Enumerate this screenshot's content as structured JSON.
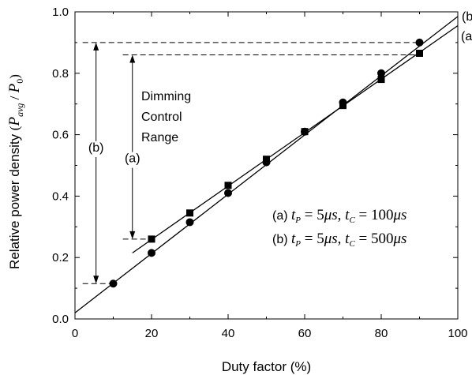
{
  "chart_data": {
    "type": "scatter",
    "title": "",
    "xlabel": "Duty factor (%)",
    "ylabel_prefix": "Relative power density",
    "xlim": [
      0,
      100
    ],
    "ylim": [
      0.0,
      1.0
    ],
    "x_ticks": [
      "0",
      "20",
      "40",
      "60",
      "80",
      "100"
    ],
    "y_ticks": [
      "0.0",
      "0.2",
      "0.4",
      "0.6",
      "0.8",
      "1.0"
    ],
    "series": [
      {
        "name": "(a)",
        "marker": "square",
        "x": [
          20,
          30,
          40,
          50,
          60,
          70,
          80,
          90
        ],
        "y": [
          0.26,
          0.345,
          0.435,
          0.52,
          0.61,
          0.695,
          0.78,
          0.865
        ],
        "fit": {
          "x": [
            15,
            100
          ],
          "y": [
            0.215,
            0.955
          ]
        }
      },
      {
        "name": "(b)",
        "marker": "circle",
        "x": [
          10,
          20,
          30,
          40,
          50,
          60,
          70,
          80,
          90
        ],
        "y": [
          0.115,
          0.215,
          0.315,
          0.41,
          0.51,
          0.61,
          0.705,
          0.8,
          0.9
        ],
        "fit": {
          "x": [
            0,
            100
          ],
          "y": [
            0.02,
            0.985
          ]
        }
      }
    ],
    "annotations": {
      "dimming_label": [
        "Dimming",
        "Control",
        "Range"
      ],
      "range_a_label": "(a)",
      "range_b_label": "(b)",
      "legend_a_prefix": "(a)",
      "legend_b_prefix": "(b)",
      "tp_value": "5",
      "tc_value_a": "100",
      "tc_value_b": "500",
      "unit": "μs",
      "line_end_a": "(a",
      "line_end_b": "(b"
    },
    "ranges": {
      "a": {
        "x": 15,
        "y_low": 0.26,
        "y_high": 0.86,
        "dash_x_from": 12.5,
        "dash_x_to": 90
      },
      "b": {
        "x": 5.5,
        "y_low": 0.115,
        "y_high": 0.9,
        "dash_x_from": 2,
        "dash_x_to": 90
      }
    }
  }
}
